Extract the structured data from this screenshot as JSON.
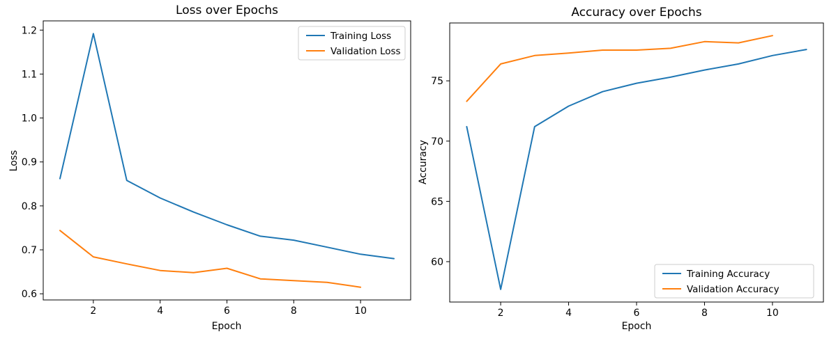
{
  "figure": {
    "background": "#ffffff",
    "text_color": "#000000",
    "spine_color": "#000000",
    "legend_edge_color": "#cccccc"
  },
  "chart_data": [
    {
      "type": "line",
      "title": "Loss over Epochs",
      "xlabel": "Epoch",
      "ylabel": "Loss",
      "xlim": [
        0.5,
        11.5
      ],
      "ylim": [
        0.586,
        1.221
      ],
      "xticks": [
        2,
        4,
        6,
        8,
        10
      ],
      "xtick_labels": [
        "2",
        "4",
        "6",
        "8",
        "10"
      ],
      "yticks": [
        0.6,
        0.7,
        0.8,
        0.9,
        1.0,
        1.1,
        1.2
      ],
      "ytick_labels": [
        "0.6",
        "0.7",
        "0.8",
        "0.9",
        "1.0",
        "1.1",
        "1.2"
      ],
      "grid": false,
      "legend_position": "upper-right",
      "series": [
        {
          "name": "Training Loss",
          "color": "#1f77b4",
          "x": [
            1,
            2,
            3,
            4,
            5,
            6,
            7,
            8,
            9,
            10,
            11
          ],
          "values": [
            0.862,
            1.192,
            0.858,
            0.818,
            0.786,
            0.757,
            0.731,
            0.722,
            0.706,
            0.69,
            0.68
          ]
        },
        {
          "name": "Validation Loss",
          "color": "#ff7f0e",
          "x": [
            1,
            2,
            3,
            4,
            5,
            6,
            7,
            8,
            9,
            10
          ],
          "values": [
            0.744,
            0.684,
            0.668,
            0.653,
            0.648,
            0.658,
            0.634,
            0.63,
            0.626,
            0.615
          ]
        }
      ]
    },
    {
      "type": "line",
      "title": "Accuracy over Epochs",
      "xlabel": "Epoch",
      "ylabel": "Accuracy",
      "xlim": [
        0.5,
        11.5
      ],
      "ylim": [
        56.65,
        79.8
      ],
      "xticks": [
        2,
        4,
        6,
        8,
        10
      ],
      "xtick_labels": [
        "2",
        "4",
        "6",
        "8",
        "10"
      ],
      "yticks": [
        60,
        65,
        70,
        75
      ],
      "ytick_labels": [
        "60",
        "65",
        "70",
        "75"
      ],
      "grid": false,
      "legend_position": "lower-right",
      "series": [
        {
          "name": "Training Accuracy",
          "color": "#1f77b4",
          "x": [
            1,
            2,
            3,
            4,
            5,
            6,
            7,
            8,
            9,
            10,
            11
          ],
          "values": [
            71.2,
            57.7,
            71.2,
            72.9,
            74.1,
            74.8,
            75.3,
            75.9,
            76.4,
            77.1,
            77.6
          ]
        },
        {
          "name": "Validation Accuracy",
          "color": "#ff7f0e",
          "x": [
            1,
            2,
            3,
            4,
            5,
            6,
            7,
            8,
            9,
            10
          ],
          "values": [
            73.3,
            76.4,
            77.1,
            77.3,
            77.55,
            77.55,
            77.7,
            78.25,
            78.15,
            78.75
          ]
        }
      ]
    }
  ]
}
